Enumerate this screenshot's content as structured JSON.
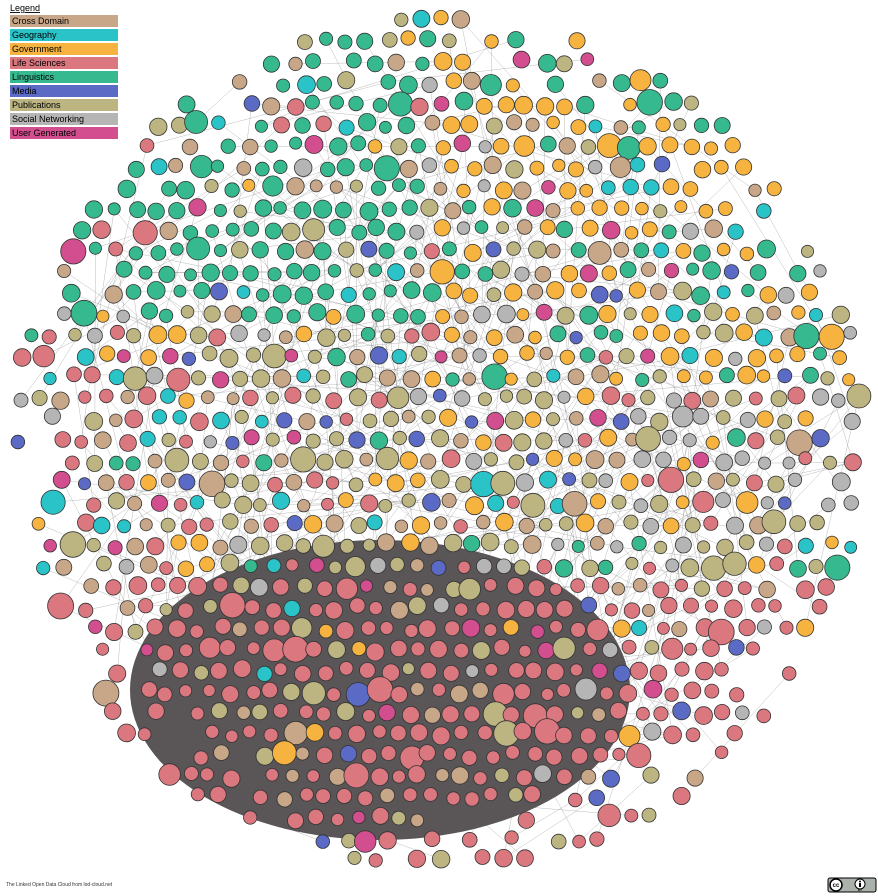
{
  "legend": {
    "title": "Legend",
    "items": [
      {
        "name": "Cross Domain",
        "color": "#c8a788"
      },
      {
        "name": "Geography",
        "color": "#29c3c8"
      },
      {
        "name": "Government",
        "color": "#f6b33f"
      },
      {
        "name": "Life Sciences",
        "color": "#db777f"
      },
      {
        "name": "Linguistics",
        "color": "#36b98f"
      },
      {
        "name": "Media",
        "color": "#5b6ac5"
      },
      {
        "name": "Publications",
        "color": "#bcb582"
      },
      {
        "name": "Social Networking",
        "color": "#b5b5b5"
      },
      {
        "name": "User Generated",
        "color": "#d34e8f"
      }
    ]
  },
  "footer": {
    "credit": "The Linked Open Data Cloud from lod-cloud.net",
    "license": "cc",
    "license_by": "BY"
  }
}
